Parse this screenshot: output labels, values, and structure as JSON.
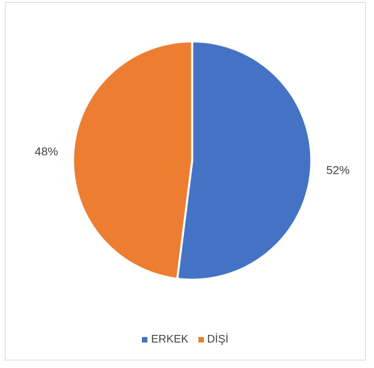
{
  "chart_data": {
    "type": "pie",
    "categories": [
      "ERKEK",
      "DİŞİ"
    ],
    "values": [
      52,
      48
    ],
    "data_labels": [
      "52%",
      "48%"
    ],
    "colors": [
      "#4472c4",
      "#ed7d31"
    ],
    "legend_position": "bottom",
    "start_angle": "12 o'clock, clockwise"
  },
  "legend": {
    "items": [
      {
        "label": "ERKEK",
        "color": "#4472c4"
      },
      {
        "label": "DİŞİ",
        "color": "#ed7d31"
      }
    ]
  }
}
